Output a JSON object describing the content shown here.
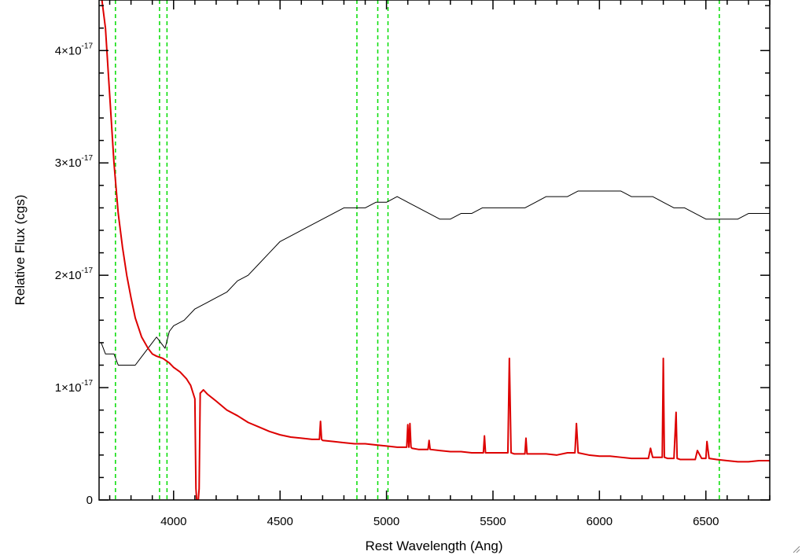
{
  "chart_data": {
    "type": "line",
    "xlabel": "Rest Wavelength (Ang)",
    "ylabel": "Relative Flux (cgs)",
    "xlim": [
      3650,
      6800
    ],
    "ylim": [
      0,
      4.45e-17
    ],
    "x_ticks": [
      4000,
      4500,
      5000,
      5500,
      6000,
      6500
    ],
    "x_tick_labels": [
      "4000",
      "4500",
      "5000",
      "5500",
      "6000",
      "6500"
    ],
    "y_ticks": [
      0,
      1e-17,
      2e-17,
      3e-17,
      4e-17
    ],
    "y_tick_labels": [
      {
        "mantissa": "0",
        "exponent": ""
      },
      {
        "mantissa": "1×10",
        "exponent": "-17"
      },
      {
        "mantissa": "2×10",
        "exponent": "-17"
      },
      {
        "mantissa": "3×10",
        "exponent": "-17"
      },
      {
        "mantissa": "4×10",
        "exponent": "-17"
      }
    ],
    "grid": false,
    "reference_lines": {
      "color": "#00dd00",
      "style": "dashed",
      "x": [
        3727,
        3934,
        3969,
        4861,
        4959,
        5007,
        6563
      ]
    },
    "series": [
      {
        "role": "observed spectrum",
        "color": "#000000",
        "x": [
          3660,
          3680,
          3700,
          3720,
          3740,
          3760,
          3780,
          3800,
          3820,
          3840,
          3860,
          3880,
          3900,
          3920,
          3940,
          3960,
          3980,
          4000,
          4050,
          4100,
          4150,
          4200,
          4250,
          4300,
          4350,
          4400,
          4450,
          4500,
          4550,
          4600,
          4650,
          4700,
          4750,
          4800,
          4850,
          4900,
          4950,
          5000,
          5050,
          5100,
          5150,
          5200,
          5250,
          5300,
          5350,
          5400,
          5450,
          5500,
          5550,
          5600,
          5650,
          5700,
          5750,
          5800,
          5850,
          5900,
          5950,
          6000,
          6050,
          6100,
          6150,
          6200,
          6250,
          6300,
          6350,
          6400,
          6450,
          6500,
          6550,
          6600,
          6650,
          6700,
          6750,
          6800
        ],
        "y": [
          1.4e-17,
          1.3e-17,
          1.3e-17,
          1.3e-17,
          1.2e-17,
          1.2e-17,
          1.2e-17,
          1.2e-17,
          1.2e-17,
          1.25e-17,
          1.3e-17,
          1.35e-17,
          1.4e-17,
          1.45e-17,
          1.4e-17,
          1.35e-17,
          1.5e-17,
          1.55e-17,
          1.6e-17,
          1.7e-17,
          1.75e-17,
          1.8e-17,
          1.85e-17,
          1.95e-17,
          2e-17,
          2.1e-17,
          2.2e-17,
          2.3e-17,
          2.35e-17,
          2.4e-17,
          2.45e-17,
          2.5e-17,
          2.55e-17,
          2.6e-17,
          2.6e-17,
          2.6e-17,
          2.65e-17,
          2.65e-17,
          2.7e-17,
          2.65e-17,
          2.6e-17,
          2.55e-17,
          2.5e-17,
          2.5e-17,
          2.55e-17,
          2.55e-17,
          2.6e-17,
          2.6e-17,
          2.6e-17,
          2.6e-17,
          2.6e-17,
          2.65e-17,
          2.7e-17,
          2.7e-17,
          2.7e-17,
          2.75e-17,
          2.75e-17,
          2.75e-17,
          2.75e-17,
          2.75e-17,
          2.7e-17,
          2.7e-17,
          2.7e-17,
          2.65e-17,
          2.6e-17,
          2.6e-17,
          2.55e-17,
          2.5e-17,
          2.5e-17,
          2.5e-17,
          2.5e-17,
          2.55e-17,
          2.55e-17,
          2.55e-17
        ]
      },
      {
        "role": "model / error spectrum",
        "color": "#dd0000",
        "x": [
          3660,
          3680,
          3700,
          3720,
          3740,
          3760,
          3780,
          3800,
          3820,
          3850,
          3880,
          3900,
          3920,
          3950,
          3980,
          4000,
          4030,
          4060,
          4080,
          4100,
          4105,
          4112,
          4120,
          4125,
          4140,
          4160,
          4200,
          4250,
          4300,
          4350,
          4400,
          4450,
          4500,
          4550,
          4600,
          4650,
          4685,
          4690,
          4695,
          4700,
          4750,
          4800,
          4850,
          4900,
          4950,
          5000,
          5050,
          5095,
          5100,
          5105,
          5110,
          5115,
          5120,
          5150,
          5195,
          5200,
          5205,
          5250,
          5300,
          5350,
          5400,
          5455,
          5460,
          5465,
          5500,
          5550,
          5570,
          5577,
          5585,
          5600,
          5650,
          5655,
          5660,
          5700,
          5750,
          5800,
          5850,
          5885,
          5892,
          5900,
          5950,
          6000,
          6050,
          6100,
          6150,
          6200,
          6230,
          6240,
          6250,
          6280,
          6295,
          6300,
          6305,
          6320,
          6350,
          6360,
          6365,
          6380,
          6420,
          6450,
          6460,
          6480,
          6500,
          6505,
          6515,
          6550,
          6600,
          6650,
          6700,
          6750,
          6800
        ],
        "y": [
          4.5e-17,
          4.2e-17,
          3.6e-17,
          3e-17,
          2.55e-17,
          2.25e-17,
          2e-17,
          1.8e-17,
          1.62e-17,
          1.45e-17,
          1.35e-17,
          1.3e-17,
          1.28e-17,
          1.26e-17,
          1.22e-17,
          1.18e-17,
          1.14e-17,
          1.08e-17,
          1.02e-17,
          9e-18,
          1e-18,
          -1e-18,
          1e-18,
          9.5e-18,
          9.8e-18,
          9.4e-18,
          8.8e-18,
          8e-18,
          7.5e-18,
          6.9e-18,
          6.5e-18,
          6.1e-18,
          5.8e-18,
          5.6e-18,
          5.5e-18,
          5.4e-18,
          5.4e-18,
          7e-18,
          5.4e-18,
          5.3e-18,
          5.2e-18,
          5.1e-18,
          5e-18,
          5e-18,
          4.9e-18,
          4.8e-18,
          4.7e-18,
          4.7e-18,
          6.7e-18,
          4.7e-18,
          6.8e-18,
          4.7e-18,
          4.6e-18,
          4.5e-18,
          4.5e-18,
          5.3e-18,
          4.5e-18,
          4.4e-18,
          4.3e-18,
          4.3e-18,
          4.2e-18,
          4.2e-18,
          5.7e-18,
          4.2e-18,
          4.2e-18,
          4.2e-18,
          4.2e-18,
          1.26e-17,
          4.2e-18,
          4.1e-18,
          4.1e-18,
          5.5e-18,
          4.1e-18,
          4.1e-18,
          4.1e-18,
          4e-18,
          4.2e-18,
          4.2e-18,
          6.8e-18,
          4.2e-18,
          4e-18,
          3.9e-18,
          3.9e-18,
          3.8e-18,
          3.7e-18,
          3.7e-18,
          3.7e-18,
          4.6e-18,
          3.8e-18,
          3.8e-18,
          3.8e-18,
          1.26e-17,
          3.8e-18,
          3.7e-18,
          3.7e-18,
          7.8e-18,
          3.7e-18,
          3.6e-18,
          3.6e-18,
          3.6e-18,
          4.4e-18,
          3.7e-18,
          3.7e-18,
          5.2e-18,
          3.7e-18,
          3.6e-18,
          3.5e-18,
          3.4e-18,
          3.4e-18,
          3.5e-18,
          3.5e-18
        ]
      }
    ]
  }
}
